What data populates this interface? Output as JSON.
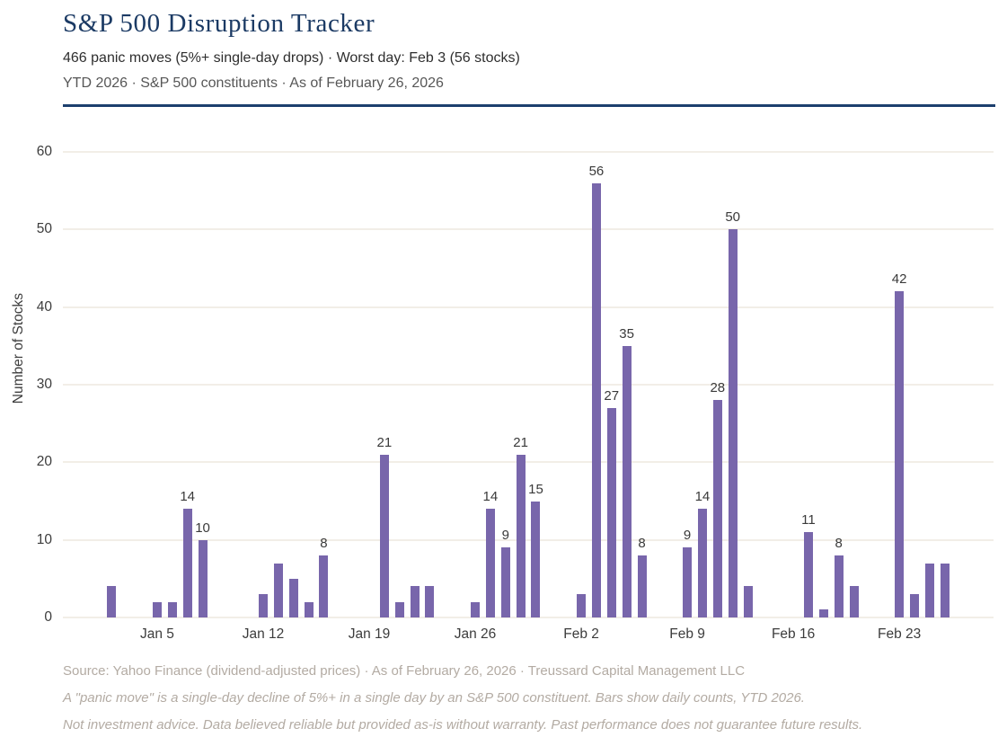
{
  "header": {
    "title": "S&P 500 Disruption Tracker",
    "subtitle": "466 panic moves (5%+ single-day drops) · Worst day: Feb 3 (56 stocks)",
    "meta": "YTD 2026 · S&P 500 constituents · As of February 26, 2026"
  },
  "footer": {
    "source": "Source: Yahoo Finance (dividend-adjusted prices) · As of February 26, 2026 · Treussard Capital Management LLC",
    "note1": "A \"panic move\" is a single-day decline of 5%+ in a single day by an S&P 500 constituent. Bars show daily counts, YTD 2026.",
    "note2": "Not investment advice. Data believed reliable but provided as-is without warranty. Past performance does not guarantee future results."
  },
  "colors": {
    "accent_navy": "#1d3f6e",
    "title_navy": "#1b3a64",
    "bar_purple": "#7866ab",
    "gridline": "#f2eee7",
    "tick_text": "#3c3c3c",
    "muted_text": "#b3aba3"
  },
  "chart_data": {
    "type": "bar",
    "title": "S&P 500 Disruption Tracker",
    "xlabel": "",
    "ylabel": "Number of Stocks",
    "ylim": [
      0,
      60
    ],
    "yticks": [
      0,
      10,
      20,
      30,
      40,
      50,
      60
    ],
    "grid": true,
    "legend": "none",
    "bar_color": "#7866ab",
    "x_axis_note": "calendar-day slots Jan 2 - Feb 26, 2026; day index 0 = Jan 2; weekends and market holidays (Jan 19, Feb 16) have no bars; bars with value >= 8 carry data labels",
    "total_panic_moves": 466,
    "xticks": [
      {
        "label": "Jan 5",
        "day": 3
      },
      {
        "label": "Jan 12",
        "day": 10
      },
      {
        "label": "Jan 19",
        "day": 17
      },
      {
        "label": "Jan 26",
        "day": 24
      },
      {
        "label": "Feb 2",
        "day": 31
      },
      {
        "label": "Feb 9",
        "day": 38
      },
      {
        "label": "Feb 16",
        "day": 45
      },
      {
        "label": "Feb 23",
        "day": 52
      }
    ],
    "bars": [
      {
        "date": "Jan 2",
        "day": 0,
        "value": 4,
        "show_label": false
      },
      {
        "date": "Jan 5",
        "day": 3,
        "value": 2,
        "show_label": false
      },
      {
        "date": "Jan 6",
        "day": 4,
        "value": 2,
        "show_label": false
      },
      {
        "date": "Jan 7",
        "day": 5,
        "value": 14,
        "show_label": true
      },
      {
        "date": "Jan 8",
        "day": 6,
        "value": 10,
        "show_label": true
      },
      {
        "date": "Jan 12",
        "day": 10,
        "value": 3,
        "show_label": false
      },
      {
        "date": "Jan 13",
        "day": 11,
        "value": 7,
        "show_label": false
      },
      {
        "date": "Jan 14",
        "day": 12,
        "value": 5,
        "show_label": false
      },
      {
        "date": "Jan 15",
        "day": 13,
        "value": 2,
        "show_label": false
      },
      {
        "date": "Jan 16",
        "day": 14,
        "value": 8,
        "show_label": true
      },
      {
        "date": "Jan 20",
        "day": 18,
        "value": 21,
        "show_label": true
      },
      {
        "date": "Jan 21",
        "day": 19,
        "value": 2,
        "show_label": false
      },
      {
        "date": "Jan 22",
        "day": 20,
        "value": 4,
        "show_label": false
      },
      {
        "date": "Jan 23",
        "day": 21,
        "value": 4,
        "show_label": false
      },
      {
        "date": "Jan 26",
        "day": 24,
        "value": 2,
        "show_label": false
      },
      {
        "date": "Jan 27",
        "day": 25,
        "value": 14,
        "show_label": true
      },
      {
        "date": "Jan 28",
        "day": 26,
        "value": 9,
        "show_label": true
      },
      {
        "date": "Jan 29",
        "day": 27,
        "value": 21,
        "show_label": true
      },
      {
        "date": "Jan 30",
        "day": 28,
        "value": 15,
        "show_label": true
      },
      {
        "date": "Feb 2",
        "day": 31,
        "value": 3,
        "show_label": false
      },
      {
        "date": "Feb 3",
        "day": 32,
        "value": 56,
        "show_label": true
      },
      {
        "date": "Feb 4",
        "day": 33,
        "value": 27,
        "show_label": true
      },
      {
        "date": "Feb 5",
        "day": 34,
        "value": 35,
        "show_label": true
      },
      {
        "date": "Feb 6",
        "day": 35,
        "value": 8,
        "show_label": true
      },
      {
        "date": "Feb 9",
        "day": 38,
        "value": 9,
        "show_label": true
      },
      {
        "date": "Feb 10",
        "day": 39,
        "value": 14,
        "show_label": true
      },
      {
        "date": "Feb 11",
        "day": 40,
        "value": 28,
        "show_label": true
      },
      {
        "date": "Feb 12",
        "day": 41,
        "value": 50,
        "show_label": true
      },
      {
        "date": "Feb 13",
        "day": 42,
        "value": 4,
        "show_label": false
      },
      {
        "date": "Feb 17",
        "day": 46,
        "value": 11,
        "show_label": true
      },
      {
        "date": "Feb 18",
        "day": 47,
        "value": 1,
        "show_label": false
      },
      {
        "date": "Feb 19",
        "day": 48,
        "value": 8,
        "show_label": true
      },
      {
        "date": "Feb 20",
        "day": 49,
        "value": 4,
        "show_label": false
      },
      {
        "date": "Feb 23",
        "day": 52,
        "value": 42,
        "show_label": true
      },
      {
        "date": "Feb 24",
        "day": 53,
        "value": 3,
        "show_label": false
      },
      {
        "date": "Feb 25",
        "day": 54,
        "value": 7,
        "show_label": false
      },
      {
        "date": "Feb 26",
        "day": 55,
        "value": 7,
        "show_label": false
      }
    ]
  }
}
